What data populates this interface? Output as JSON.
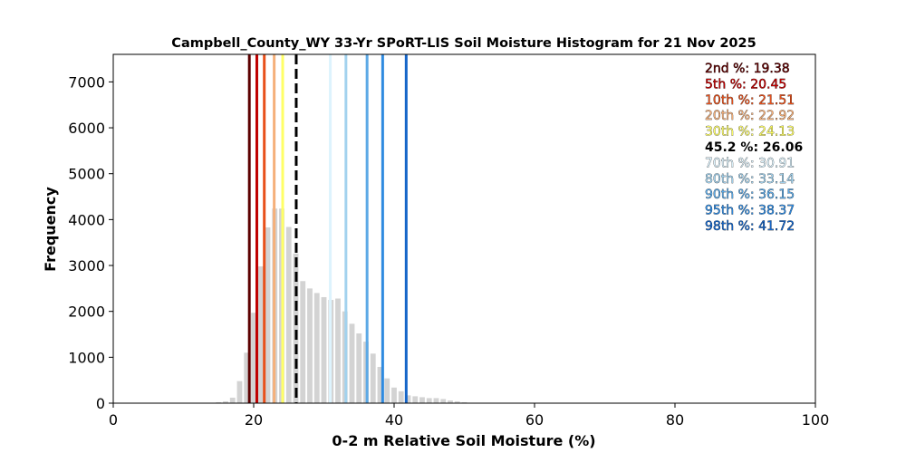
{
  "chart_data": {
    "type": "bar",
    "title": "Campbell_County_WY 33-Yr SPoRT-LIS Soil Moisture Histogram for 21 Nov 2025",
    "xlabel": "0-2 m Relative Soil Moisture (%)",
    "ylabel": "Frequency",
    "xlim": [
      0,
      100
    ],
    "ylim": [
      0,
      7600
    ],
    "xticks": [
      0,
      20,
      40,
      60,
      80,
      100
    ],
    "yticks": [
      0,
      1000,
      2000,
      3000,
      4000,
      5000,
      6000,
      7000
    ],
    "bar_color": "#d3d3d3",
    "histogram": {
      "x": [
        14,
        15,
        16,
        17,
        18,
        19,
        20,
        21,
        22,
        23,
        24,
        25,
        26,
        27,
        28,
        29,
        30,
        31,
        32,
        33,
        34,
        35,
        36,
        37,
        38,
        39,
        40,
        41,
        42,
        43,
        44,
        45,
        46,
        47,
        48,
        49,
        50,
        51,
        52
      ],
      "values": [
        10,
        20,
        40,
        120,
        480,
        1100,
        1970,
        2980,
        3830,
        4240,
        4240,
        3840,
        3260,
        2660,
        2500,
        2400,
        2310,
        2250,
        2280,
        2000,
        1730,
        1520,
        1340,
        1080,
        790,
        540,
        340,
        260,
        170,
        150,
        130,
        110,
        110,
        90,
        60,
        40,
        20,
        10,
        5
      ]
    },
    "percentile_lines": [
      {
        "label": "2nd %",
        "value": "19.38",
        "x": 19.38,
        "color": "#5c0000"
      },
      {
        "label": "5th %",
        "value": "20.45",
        "x": 20.45,
        "color": "#c00000"
      },
      {
        "label": "10th %",
        "value": "21.51",
        "x": 21.51,
        "color": "#e8501a"
      },
      {
        "label": "20th %",
        "value": "22.92",
        "x": 22.92,
        "color": "#f5b07a"
      },
      {
        "label": "30th %",
        "value": "24.13",
        "x": 24.13,
        "color": "#ffff66"
      },
      {
        "label": "70th %",
        "value": "30.91",
        "x": 30.91,
        "color": "#ddf3fd"
      },
      {
        "label": "80th %",
        "value": "33.14",
        "x": 33.14,
        "color": "#a2d2ee"
      },
      {
        "label": "90th %",
        "value": "36.15",
        "x": 36.15,
        "color": "#5ca9e6"
      },
      {
        "label": "95th %",
        "value": "38.37",
        "x": 38.37,
        "color": "#2f8ae0"
      },
      {
        "label": "98th %",
        "value": "41.72",
        "x": 41.72,
        "color": "#1565c8"
      }
    ],
    "current": {
      "label": "45.2 %",
      "value": "26.06",
      "x": 26.06,
      "color": "#000000",
      "style": "dashed"
    },
    "legend_placement": "top-right",
    "legend_rows": [
      {
        "label": "2nd %",
        "value": "19.38",
        "color": "#5c0000"
      },
      {
        "label": "5th %",
        "value": "20.45",
        "color": "#c00000"
      },
      {
        "label": "10th %",
        "value": "21.51",
        "color": "#e8501a"
      },
      {
        "label": "20th %",
        "value": "22.92",
        "color": "#f5b07a"
      },
      {
        "label": "30th %",
        "value": "24.13",
        "color": "#ffff66"
      },
      {
        "label": "45.2 %",
        "value": "26.06",
        "color": "#000000",
        "bold": true
      },
      {
        "label": "70th %",
        "value": "30.91",
        "color": "#ddf3fd"
      },
      {
        "label": "80th %",
        "value": "33.14",
        "color": "#a2d2ee"
      },
      {
        "label": "90th %",
        "value": "36.15",
        "color": "#5ca9e6"
      },
      {
        "label": "95th %",
        "value": "38.37",
        "color": "#2f8ae0"
      },
      {
        "label": "98th %",
        "value": "41.72",
        "color": "#1565c8"
      }
    ],
    "grid": false
  }
}
